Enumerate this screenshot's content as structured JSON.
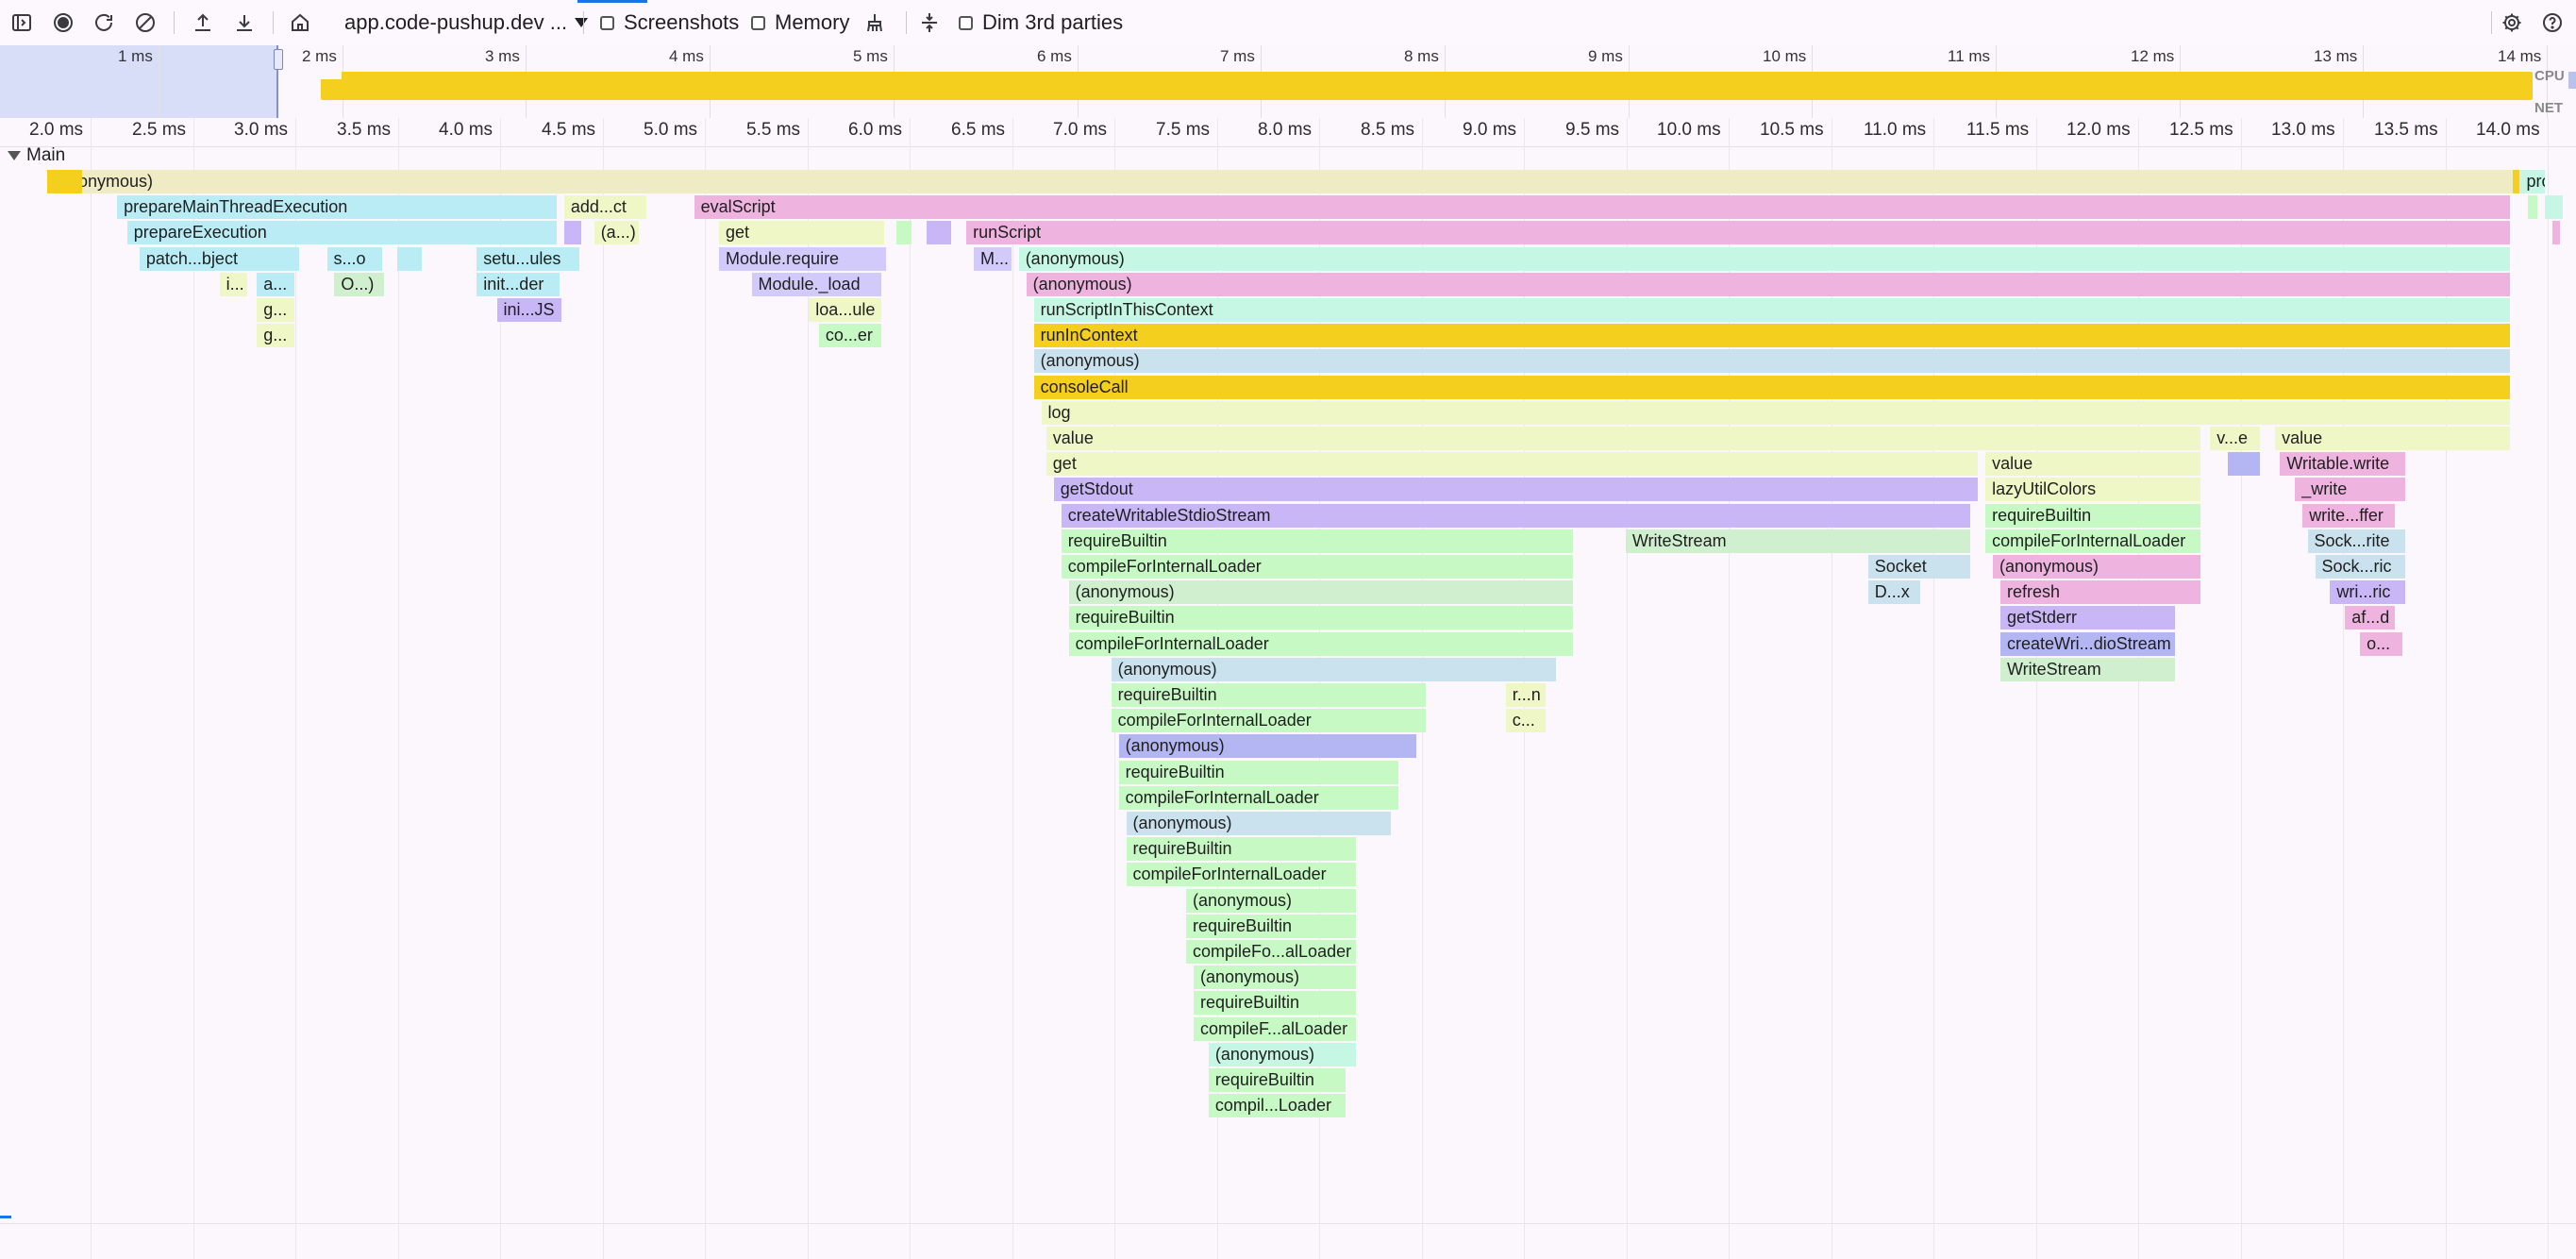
{
  "toolbar": {
    "url": "app.code-pushup.dev ...",
    "screenshots_label": "Screenshots",
    "memory_label": "Memory",
    "dim_label": "Dim 3rd parties"
  },
  "overview": {
    "ticks": [
      "1 ms",
      "2 ms",
      "3 ms",
      "4 ms",
      "5 ms",
      "6 ms",
      "7 ms",
      "8 ms",
      "9 ms",
      "10 ms",
      "11 ms",
      "12 ms",
      "13 ms",
      "14 ms"
    ],
    "cpu_label": "CPU",
    "net_label": "NET"
  },
  "ruler": {
    "ticks": [
      "2.0 ms",
      "2.5 ms",
      "3.0 ms",
      "3.5 ms",
      "4.0 ms",
      "4.5 ms",
      "5.0 ms",
      "5.5 ms",
      "6.0 ms",
      "6.5 ms",
      "7.0 ms",
      "7.5 ms",
      "8.0 ms",
      "8.5 ms",
      "9.0 ms",
      "9.5 ms",
      "10.0 ms",
      "10.5 ms",
      "11.0 ms",
      "11.5 ms",
      "12.0 ms",
      "12.5 ms",
      "13.0 ms",
      "13.5 ms",
      "14.0 ms"
    ]
  },
  "track": {
    "name": "Main"
  },
  "colors": {
    "yellow": "#f5cf1d",
    "beige": "#efebc5",
    "cyan": "#b9ecf5",
    "pink": "#efb3df",
    "green": "#c7f9c5",
    "mint": "#c6f6e4",
    "purple": "#c8b6f6",
    "lightblue": "#cae2ee",
    "lightgreen": "#cfefcf",
    "lavender": "#d2cafa",
    "peach": "#f7dfc6",
    "olive": "#eef7c5",
    "blueviolet": "#b3b6f2"
  },
  "flame": {
    "entries": [
      {
        "name": "(anonymous)",
        "depth": 0,
        "start": 0.0,
        "end": 1.0,
        "color": "beige"
      },
      {
        "name": "",
        "depth": 0,
        "start": 0.0,
        "end": 0.014,
        "color": "yellow"
      },
      {
        "name": "pro...ns",
        "depth": 0,
        "start": 0.99,
        "end": 1.0,
        "color": "mint"
      },
      {
        "name": "",
        "depth": 0,
        "start": 0.987,
        "end": 0.99,
        "color": "yellow"
      },
      {
        "name": "prepareMainThreadExecution",
        "depth": 1,
        "start": 0.028,
        "end": 0.204,
        "color": "cyan"
      },
      {
        "name": "add...ct",
        "depth": 1,
        "start": 0.207,
        "end": 0.24,
        "color": "olive"
      },
      {
        "name": "evalScript",
        "depth": 1,
        "start": 0.259,
        "end": 0.986,
        "color": "pink"
      },
      {
        "name": "",
        "depth": 1,
        "start": 0.993,
        "end": 0.997,
        "color": "green"
      },
      {
        "name": "",
        "depth": 1,
        "start": 1.0,
        "end": 1.007,
        "color": "mint"
      },
      {
        "name": "prepareExecution",
        "depth": 2,
        "start": 0.032,
        "end": 0.204,
        "color": "cyan"
      },
      {
        "name": "",
        "depth": 2,
        "start": 0.207,
        "end": 0.214,
        "color": "purple"
      },
      {
        "name": "(a...)",
        "depth": 2,
        "start": 0.219,
        "end": 0.237,
        "color": "olive"
      },
      {
        "name": "get",
        "depth": 2,
        "start": 0.269,
        "end": 0.335,
        "color": "olive"
      },
      {
        "name": "",
        "depth": 2,
        "start": 0.34,
        "end": 0.346,
        "color": "green"
      },
      {
        "name": "",
        "depth": 2,
        "start": 0.352,
        "end": 0.362,
        "color": "purple"
      },
      {
        "name": "runScript",
        "depth": 2,
        "start": 0.368,
        "end": 0.986,
        "color": "pink"
      },
      {
        "name": "",
        "depth": 2,
        "start": 1.003,
        "end": 1.006,
        "color": "pink"
      },
      {
        "name": "patch...bject",
        "depth": 3,
        "start": 0.037,
        "end": 0.101,
        "color": "cyan"
      },
      {
        "name": "s...o",
        "depth": 3,
        "start": 0.112,
        "end": 0.134,
        "color": "cyan"
      },
      {
        "name": "",
        "depth": 3,
        "start": 0.14,
        "end": 0.15,
        "color": "cyan"
      },
      {
        "name": "setu...ules",
        "depth": 3,
        "start": 0.172,
        "end": 0.213,
        "color": "cyan"
      },
      {
        "name": "Module.require",
        "depth": 3,
        "start": 0.269,
        "end": 0.336,
        "color": "lavender"
      },
      {
        "name": "M...",
        "depth": 3,
        "start": 0.371,
        "end": 0.386,
        "color": "lavender"
      },
      {
        "name": "(anonymous)",
        "depth": 3,
        "start": 0.389,
        "end": 0.986,
        "color": "mint"
      },
      {
        "name": "i...",
        "depth": 4,
        "start": 0.069,
        "end": 0.08,
        "color": "olive"
      },
      {
        "name": "a...",
        "depth": 4,
        "start": 0.084,
        "end": 0.099,
        "color": "cyan"
      },
      {
        "name": "O...)",
        "depth": 4,
        "start": 0.115,
        "end": 0.135,
        "color": "lightgreen"
      },
      {
        "name": "init...der",
        "depth": 4,
        "start": 0.172,
        "end": 0.205,
        "color": "cyan"
      },
      {
        "name": "Module._load",
        "depth": 4,
        "start": 0.282,
        "end": 0.334,
        "color": "lavender"
      },
      {
        "name": "(anonymous)",
        "depth": 4,
        "start": 0.392,
        "end": 0.986,
        "color": "pink"
      },
      {
        "name": "g...",
        "depth": 5,
        "start": 0.084,
        "end": 0.099,
        "color": "olive"
      },
      {
        "name": "ini...JS",
        "depth": 5,
        "start": 0.18,
        "end": 0.206,
        "color": "purple"
      },
      {
        "name": "loa...ule",
        "depth": 5,
        "start": 0.305,
        "end": 0.334,
        "color": "olive"
      },
      {
        "name": "runScriptInThisContext",
        "depth": 5,
        "start": 0.395,
        "end": 0.986,
        "color": "mint"
      },
      {
        "name": "g...",
        "depth": 6,
        "start": 0.084,
        "end": 0.099,
        "color": "olive"
      },
      {
        "name": "co...er",
        "depth": 6,
        "start": 0.309,
        "end": 0.334,
        "color": "green"
      },
      {
        "name": "runInContext",
        "depth": 6,
        "start": 0.395,
        "end": 0.986,
        "color": "yellow"
      },
      {
        "name": "(anonymous)",
        "depth": 7,
        "start": 0.395,
        "end": 0.986,
        "color": "lightblue"
      },
      {
        "name": "consoleCall",
        "depth": 8,
        "start": 0.395,
        "end": 0.986,
        "color": "yellow"
      },
      {
        "name": "log",
        "depth": 9,
        "start": 0.398,
        "end": 0.986,
        "color": "olive"
      },
      {
        "name": "value",
        "depth": 10,
        "start": 0.4,
        "end": 0.862,
        "color": "olive"
      },
      {
        "name": "v...e",
        "depth": 10,
        "start": 0.866,
        "end": 0.886,
        "color": "olive"
      },
      {
        "name": "value",
        "depth": 10,
        "start": 0.892,
        "end": 0.986,
        "color": "olive"
      },
      {
        "name": "get",
        "depth": 11,
        "start": 0.4,
        "end": 0.773,
        "color": "olive"
      },
      {
        "name": "value",
        "depth": 11,
        "start": 0.776,
        "end": 0.862,
        "color": "olive"
      },
      {
        "name": "",
        "depth": 11,
        "start": 0.873,
        "end": 0.886,
        "color": "blueviolet"
      },
      {
        "name": "Writable.write",
        "depth": 11,
        "start": 0.894,
        "end": 0.944,
        "color": "pink"
      },
      {
        "name": "getStdout",
        "depth": 12,
        "start": 0.403,
        "end": 0.773,
        "color": "purple"
      },
      {
        "name": "lazyUtilColors",
        "depth": 12,
        "start": 0.776,
        "end": 0.862,
        "color": "olive"
      },
      {
        "name": "_write",
        "depth": 12,
        "start": 0.9,
        "end": 0.944,
        "color": "pink"
      },
      {
        "name": "createWritableStdioStream",
        "depth": 13,
        "start": 0.406,
        "end": 0.77,
        "color": "purple"
      },
      {
        "name": "requireBuiltin",
        "depth": 13,
        "start": 0.776,
        "end": 0.862,
        "color": "green"
      },
      {
        "name": "write...ffer",
        "depth": 13,
        "start": 0.903,
        "end": 0.94,
        "color": "pink"
      },
      {
        "name": "requireBuiltin",
        "depth": 14,
        "start": 0.406,
        "end": 0.611,
        "color": "green"
      },
      {
        "name": "WriteStream",
        "depth": 14,
        "start": 0.632,
        "end": 0.77,
        "color": "lightgreen"
      },
      {
        "name": "compileForInternalLoader",
        "depth": 14,
        "start": 0.776,
        "end": 0.862,
        "color": "green"
      },
      {
        "name": "Sock...rite",
        "depth": 14,
        "start": 0.905,
        "end": 0.944,
        "color": "lightblue"
      },
      {
        "name": "compileForInternalLoader",
        "depth": 15,
        "start": 0.406,
        "end": 0.611,
        "color": "green"
      },
      {
        "name": "Socket",
        "depth": 15,
        "start": 0.729,
        "end": 0.77,
        "color": "lightblue"
      },
      {
        "name": "(anonymous)",
        "depth": 15,
        "start": 0.779,
        "end": 0.862,
        "color": "pink"
      },
      {
        "name": "Sock...ric",
        "depth": 15,
        "start": 0.908,
        "end": 0.944,
        "color": "lightblue"
      },
      {
        "name": "(anonymous)",
        "depth": 16,
        "start": 0.409,
        "end": 0.611,
        "color": "lightgreen"
      },
      {
        "name": "D...x",
        "depth": 16,
        "start": 0.729,
        "end": 0.75,
        "color": "lightblue"
      },
      {
        "name": "refresh",
        "depth": 16,
        "start": 0.782,
        "end": 0.862,
        "color": "pink"
      },
      {
        "name": "wri...ric",
        "depth": 16,
        "start": 0.914,
        "end": 0.944,
        "color": "purple"
      },
      {
        "name": "requireBuiltin",
        "depth": 17,
        "start": 0.409,
        "end": 0.611,
        "color": "green"
      },
      {
        "name": "getStderr",
        "depth": 17,
        "start": 0.782,
        "end": 0.852,
        "color": "purple"
      },
      {
        "name": "af...d",
        "depth": 17,
        "start": 0.92,
        "end": 0.94,
        "color": "pink"
      },
      {
        "name": "compileForInternalLoader",
        "depth": 18,
        "start": 0.409,
        "end": 0.611,
        "color": "green"
      },
      {
        "name": "createWri...dioStream",
        "depth": 18,
        "start": 0.782,
        "end": 0.852,
        "color": "blueviolet"
      },
      {
        "name": "o...",
        "depth": 18,
        "start": 0.926,
        "end": 0.943,
        "color": "pink"
      },
      {
        "name": "(anonymous)",
        "depth": 19,
        "start": 0.426,
        "end": 0.604,
        "color": "lightblue"
      },
      {
        "name": "WriteStream",
        "depth": 19,
        "start": 0.782,
        "end": 0.852,
        "color": "lightgreen"
      },
      {
        "name": "requireBuiltin",
        "depth": 20,
        "start": 0.426,
        "end": 0.552,
        "color": "green"
      },
      {
        "name": "r...n",
        "depth": 20,
        "start": 0.584,
        "end": 0.6,
        "color": "olive"
      },
      {
        "name": "compileForInternalLoader",
        "depth": 21,
        "start": 0.426,
        "end": 0.552,
        "color": "green"
      },
      {
        "name": "c...",
        "depth": 21,
        "start": 0.584,
        "end": 0.6,
        "color": "olive"
      },
      {
        "name": "(anonymous)",
        "depth": 22,
        "start": 0.429,
        "end": 0.548,
        "color": "blueviolet"
      },
      {
        "name": "requireBuiltin",
        "depth": 23,
        "start": 0.429,
        "end": 0.541,
        "color": "green"
      },
      {
        "name": "compileForInternalLoader",
        "depth": 24,
        "start": 0.429,
        "end": 0.541,
        "color": "green"
      },
      {
        "name": "(anonymous)",
        "depth": 25,
        "start": 0.432,
        "end": 0.538,
        "color": "lightblue"
      },
      {
        "name": "requireBuiltin",
        "depth": 26,
        "start": 0.432,
        "end": 0.524,
        "color": "green"
      },
      {
        "name": "compileForInternalLoader",
        "depth": 27,
        "start": 0.432,
        "end": 0.524,
        "color": "green"
      },
      {
        "name": "(anonymous)",
        "depth": 28,
        "start": 0.456,
        "end": 0.524,
        "color": "green"
      },
      {
        "name": "requireBuiltin",
        "depth": 29,
        "start": 0.456,
        "end": 0.524,
        "color": "green"
      },
      {
        "name": "compileFo...alLoader",
        "depth": 30,
        "start": 0.456,
        "end": 0.524,
        "color": "green"
      },
      {
        "name": "(anonymous)",
        "depth": 31,
        "start": 0.459,
        "end": 0.524,
        "color": "green"
      },
      {
        "name": "requireBuiltin",
        "depth": 32,
        "start": 0.459,
        "end": 0.524,
        "color": "green"
      },
      {
        "name": "compileF...alLoader",
        "depth": 33,
        "start": 0.459,
        "end": 0.524,
        "color": "green"
      },
      {
        "name": "(anonymous)",
        "depth": 34,
        "start": 0.465,
        "end": 0.524,
        "color": "mint"
      },
      {
        "name": "requireBuiltin",
        "depth": 35,
        "start": 0.465,
        "end": 0.52,
        "color": "green"
      },
      {
        "name": "compil...Loader",
        "depth": 36,
        "start": 0.465,
        "end": 0.52,
        "color": "green"
      }
    ]
  }
}
